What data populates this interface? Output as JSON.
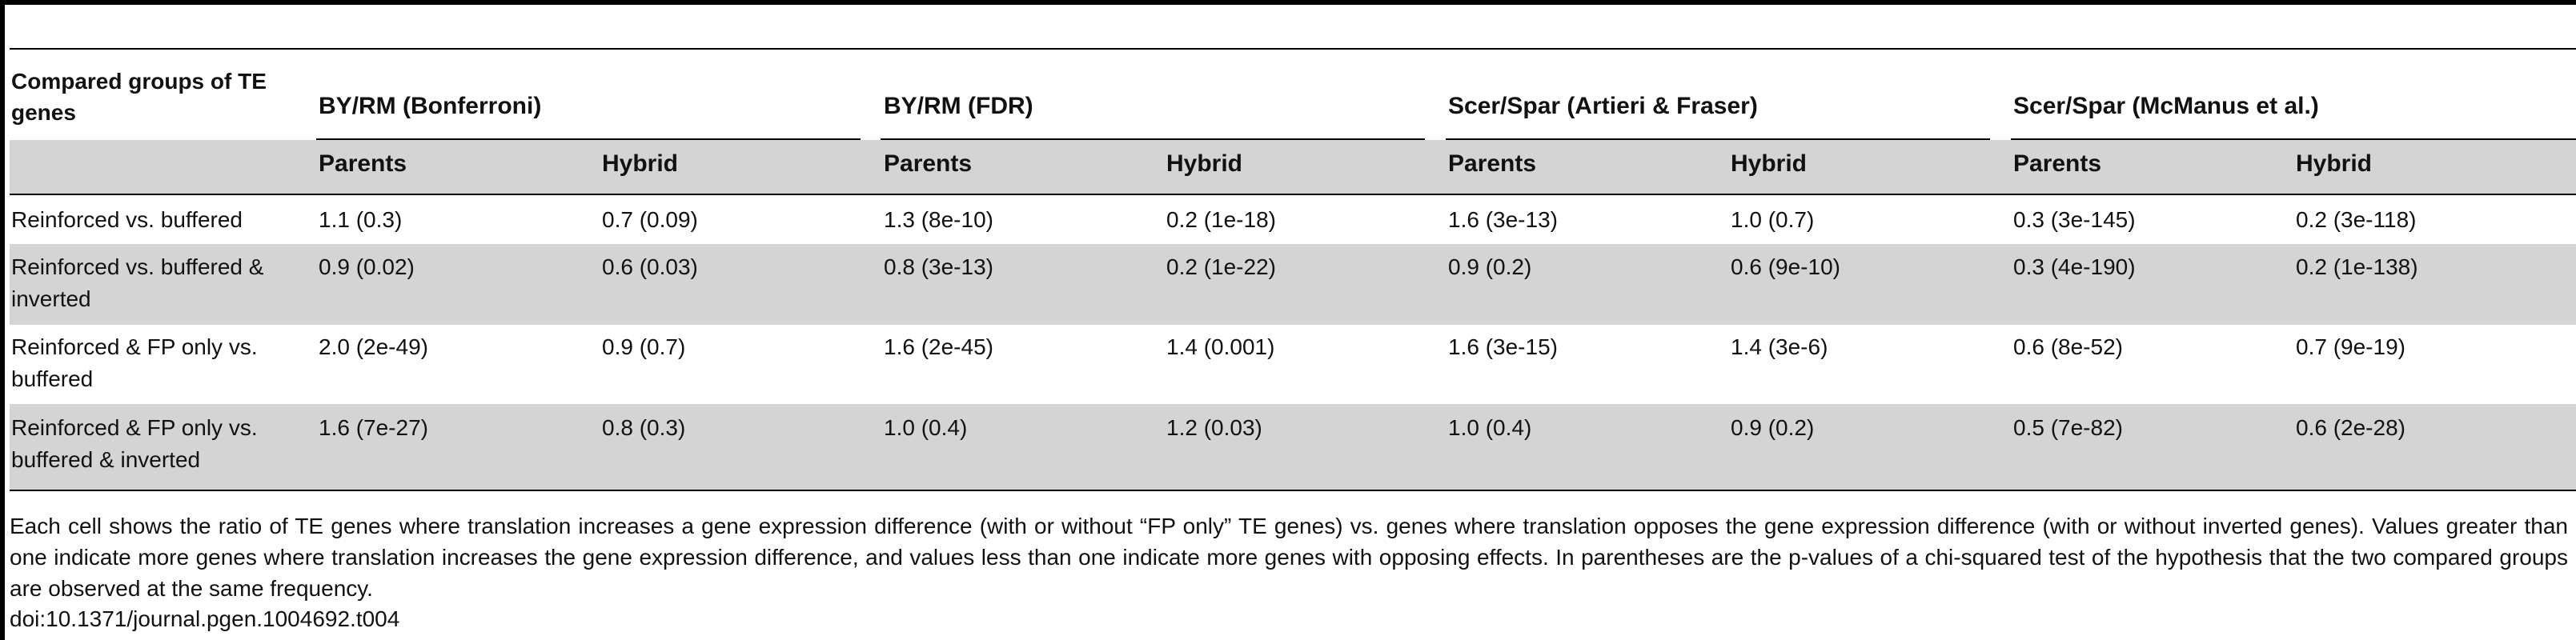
{
  "table": {
    "corner_header": "Compared groups of TE genes",
    "groups": [
      {
        "label": "BY/RM (Bonferroni)"
      },
      {
        "label": "BY/RM (FDR)"
      },
      {
        "label": "Scer/Spar (Artieri & Fraser)"
      },
      {
        "label": "Scer/Spar (McManus et al.)"
      }
    ],
    "subheaders": [
      "Parents",
      "Hybrid",
      "Parents",
      "Hybrid",
      "Parents",
      "Hybrid",
      "Parents",
      "Hybrid"
    ],
    "rows": [
      {
        "label": "Reinforced vs. buffered",
        "cells": [
          "1.1 (0.3)",
          "0.7 (0.09)",
          "1.3 (8e-10)",
          "0.2 (1e-18)",
          "1.6 (3e-13)",
          "1.0 (0.7)",
          "0.3 (3e-145)",
          "0.2 (3e-118)"
        ]
      },
      {
        "label": "Reinforced vs. buffered & inverted",
        "cells": [
          "0.9 (0.02)",
          "0.6 (0.03)",
          "0.8 (3e-13)",
          "0.2 (1e-22)",
          "0.9 (0.2)",
          "0.6 (9e-10)",
          "0.3 (4e-190)",
          "0.2 (1e-138)"
        ]
      },
      {
        "label": "Reinforced & FP only vs. buffered",
        "cells": [
          "2.0 (2e-49)",
          "0.9 (0.7)",
          "1.6 (2e-45)",
          "1.4 (0.001)",
          "1.6 (3e-15)",
          "1.4 (3e-6)",
          "0.6 (8e-52)",
          "0.7 (9e-19)"
        ]
      },
      {
        "label": "Reinforced & FP only vs. buffered & inverted",
        "cells": [
          "1.6 (7e-27)",
          "0.8 (0.3)",
          "1.0 (0.4)",
          "1.2 (0.03)",
          "1.0 (0.4)",
          "0.9 (0.2)",
          "0.5 (7e-82)",
          "0.6 (2e-28)"
        ]
      }
    ]
  },
  "caption": "Each cell shows the ratio of TE genes where translation increases a gene expression difference (with or without “FP only” TE genes) vs. genes where translation opposes the gene expression difference (with or without inverted genes). Values greater than one indicate more genes where translation increases the gene expression difference, and values less than one indicate more genes with opposing effects. In parentheses are the p-values of a chi-squared test of the hypothesis that the two compared groups are observed at the same frequency.",
  "doi": "doi:10.1371/journal.pgen.1004692.t004",
  "colors": {
    "band": "#d4d4d4",
    "rule": "#000000",
    "text": "#111111"
  }
}
